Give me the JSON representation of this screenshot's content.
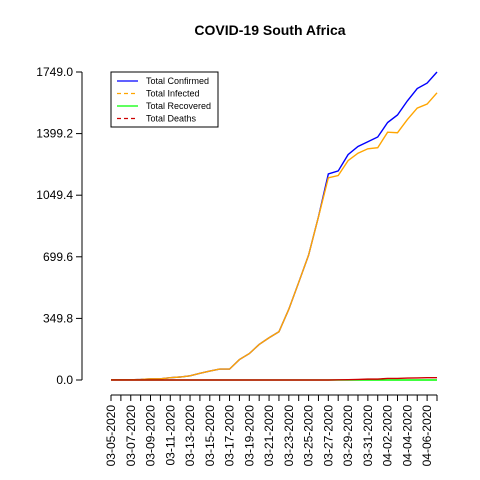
{
  "chart_data": {
    "type": "line",
    "title": "COVID-19 South Africa",
    "xlabel": "",
    "ylabel": "",
    "x": [
      "03-05-2020",
      "03-06-2020",
      "03-07-2020",
      "03-08-2020",
      "03-09-2020",
      "03-10-2020",
      "03-11-2020",
      "03-12-2020",
      "03-13-2020",
      "03-14-2020",
      "03-15-2020",
      "03-16-2020",
      "03-17-2020",
      "03-18-2020",
      "03-19-2020",
      "03-20-2020",
      "03-21-2020",
      "03-22-2020",
      "03-23-2020",
      "03-24-2020",
      "03-25-2020",
      "03-26-2020",
      "03-27-2020",
      "03-28-2020",
      "03-29-2020",
      "03-30-2020",
      "03-31-2020",
      "04-01-2020",
      "04-02-2020",
      "04-03-2020",
      "04-04-2020",
      "04-05-2020",
      "04-06-2020",
      "04-07-2020"
    ],
    "x_tick_labels": [
      "03-05-2020",
      "03-07-2020",
      "03-09-2020",
      "03-11-2020",
      "03-13-2020",
      "03-15-2020",
      "03-17-2020",
      "03-19-2020",
      "03-21-2020",
      "03-23-2020",
      "03-25-2020",
      "03-27-2020",
      "03-29-2020",
      "03-31-2020",
      "04-02-2020",
      "04-04-2020",
      "04-06-2020"
    ],
    "y_ticks": [
      "0.0",
      "349.8",
      "699.6",
      "1049.4",
      "1399.2",
      "1749.0"
    ],
    "ylim": [
      0,
      1749.0
    ],
    "grid": false,
    "legend_position": "top-left",
    "series": [
      {
        "name": "Total Confirmed",
        "color": "#0000ff",
        "values": [
          1,
          1,
          1,
          3,
          7,
          7,
          13,
          17,
          24,
          38,
          51,
          62,
          62,
          116,
          150,
          202,
          240,
          274,
          402,
          554,
          709,
          927,
          1170,
          1187,
          1280,
          1326,
          1353,
          1380,
          1462,
          1505,
          1585,
          1655,
          1686,
          1749
        ]
      },
      {
        "name": "Total Infected",
        "color": "#ffa500",
        "values": [
          1,
          1,
          1,
          3,
          7,
          7,
          13,
          17,
          24,
          38,
          51,
          62,
          62,
          116,
          150,
          202,
          240,
          274,
          402,
          554,
          709,
          926,
          1148,
          1161,
          1246,
          1288,
          1313,
          1319,
          1407,
          1404,
          1479,
          1544,
          1567,
          1631
        ]
      },
      {
        "name": "Total Recovered",
        "color": "#00ff00",
        "values": [
          0,
          0,
          0,
          0,
          0,
          0,
          0,
          0,
          0,
          0,
          0,
          0,
          0,
          0,
          0,
          0,
          0,
          0,
          0,
          0,
          0,
          0,
          0,
          0,
          0,
          0,
          0,
          0,
          0,
          0,
          0,
          0,
          0,
          0
        ]
      },
      {
        "name": "Total Deaths",
        "color": "#cd0000",
        "values": [
          0,
          0,
          0,
          0,
          0,
          0,
          0,
          0,
          0,
          0,
          0,
          0,
          0,
          0,
          0,
          0,
          0,
          0,
          0,
          0,
          0,
          0,
          0,
          1,
          2,
          3,
          5,
          5,
          9,
          9,
          11,
          12,
          13,
          13
        ]
      }
    ]
  }
}
